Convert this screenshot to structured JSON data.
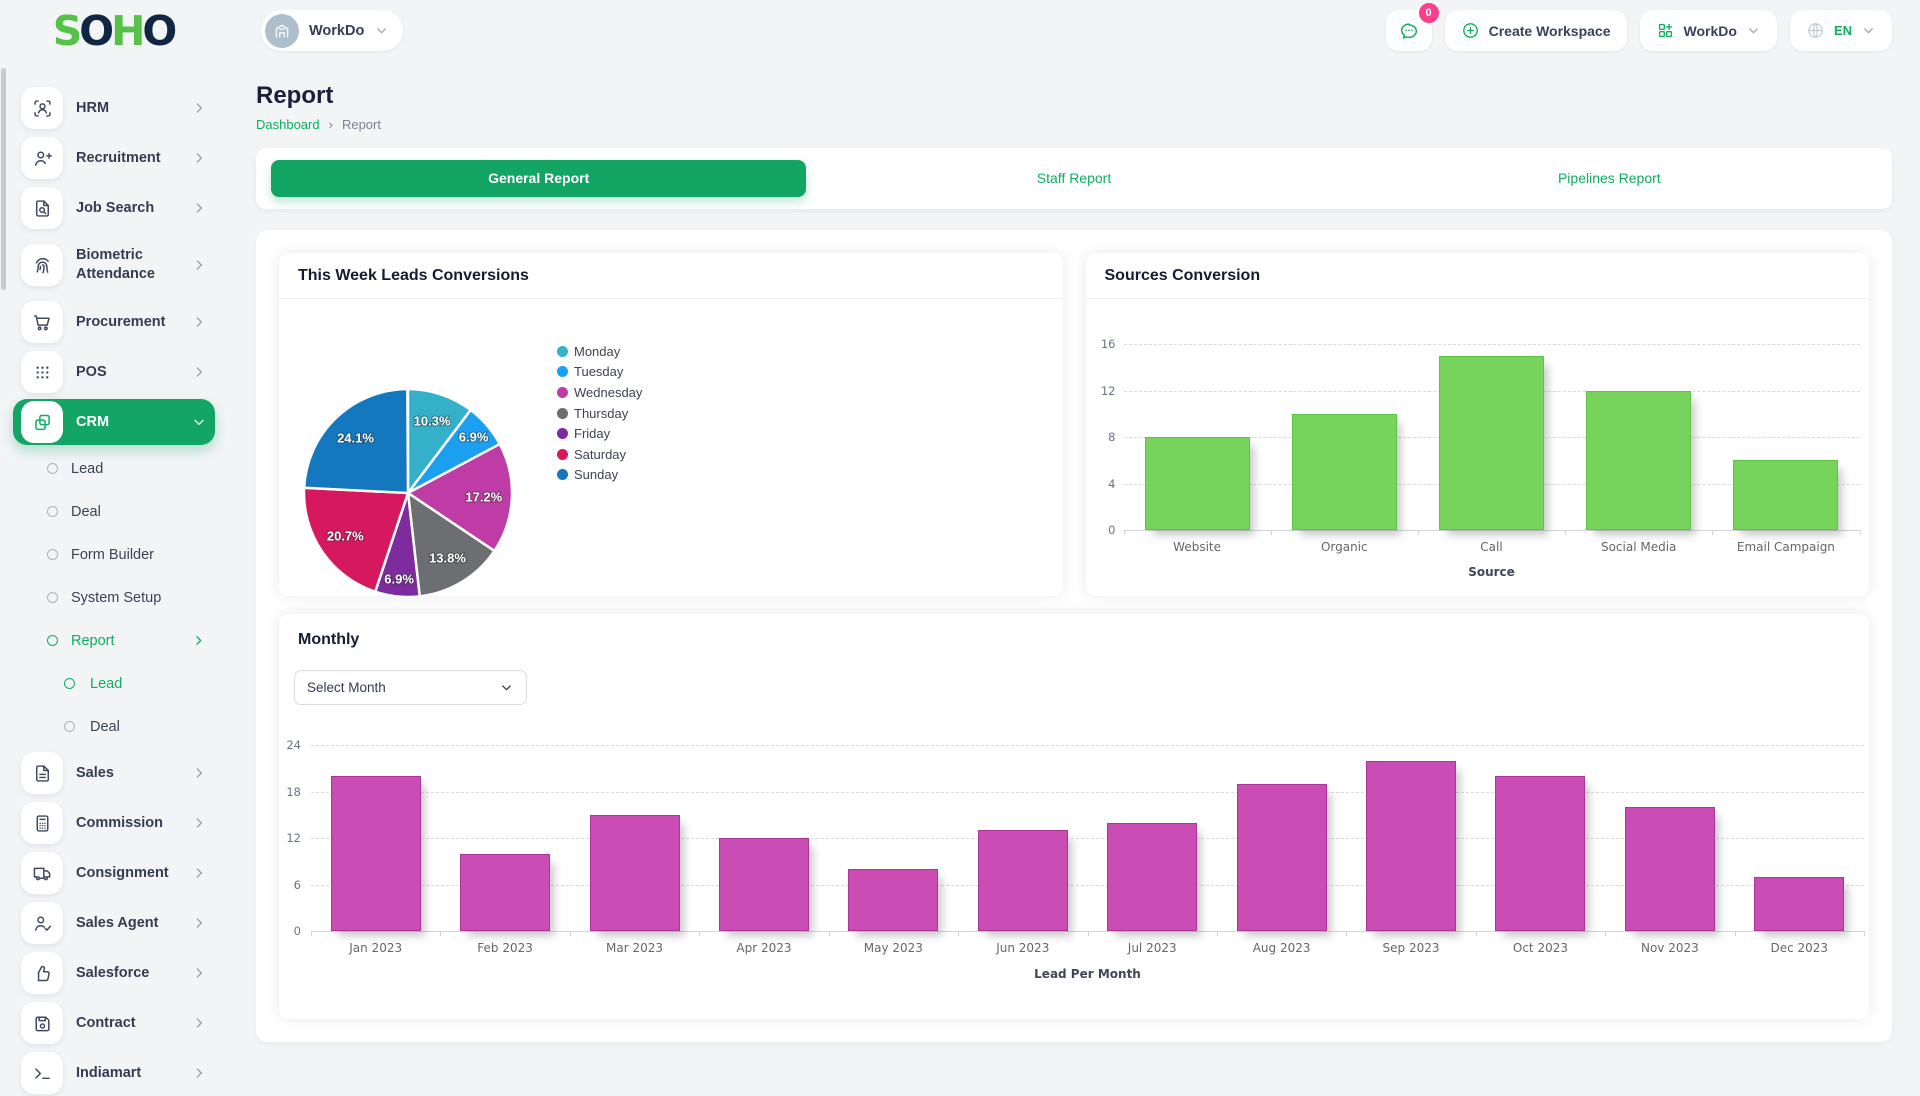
{
  "brand": {
    "logo": [
      {
        "char": "S",
        "color": "#54c247"
      },
      {
        "char": "O",
        "color": "#0f2742"
      },
      {
        "char": "H",
        "color": "#54c247"
      },
      {
        "char": "O",
        "color": "#0f2742"
      }
    ]
  },
  "topbar": {
    "workspace": {
      "label": "WorkDo",
      "icon": "building-icon"
    },
    "chat": {
      "icon": "chat-icon",
      "badge": "0"
    },
    "create_workspace": {
      "label": "Create Workspace",
      "icon": "plus-circle-icon"
    },
    "workspace_switcher": {
      "label": "WorkDo",
      "icon": "grid-plus-icon"
    },
    "language": {
      "label": "EN",
      "icon": "globe-icon"
    }
  },
  "sidebar": {
    "items": [
      {
        "label": "HRM",
        "icon": "hrm-icon",
        "level": 0,
        "chevron": "right"
      },
      {
        "label": "Recruitment",
        "icon": "recruitment-icon",
        "level": 0,
        "chevron": "right"
      },
      {
        "label": "Job Search",
        "icon": "job-search-icon",
        "level": 0,
        "chevron": "right"
      },
      {
        "label": "Biometric Attendance",
        "icon": "biometric-icon",
        "level": 0,
        "chevron": "right",
        "tall": true
      },
      {
        "label": "Procurement",
        "icon": "procurement-icon",
        "level": 0,
        "chevron": "right"
      },
      {
        "label": "POS",
        "icon": "pos-icon",
        "level": 0,
        "chevron": "right"
      },
      {
        "label": "CRM",
        "icon": "crm-icon",
        "level": 0,
        "chevron": "down",
        "active": true
      },
      {
        "label": "Lead",
        "level": 1
      },
      {
        "label": "Deal",
        "level": 1
      },
      {
        "label": "Form Builder",
        "level": 1
      },
      {
        "label": "System Setup",
        "level": 1
      },
      {
        "label": "Report",
        "level": 1,
        "active": true,
        "chevron": "right"
      },
      {
        "label": "Lead",
        "level": 2,
        "active": true
      },
      {
        "label": "Deal",
        "level": 2
      },
      {
        "label": "Sales",
        "icon": "sales-icon",
        "level": 0,
        "chevron": "right"
      },
      {
        "label": "Commission",
        "icon": "commission-icon",
        "level": 0,
        "chevron": "right"
      },
      {
        "label": "Consignment",
        "icon": "consignment-icon",
        "level": 0,
        "chevron": "right"
      },
      {
        "label": "Sales Agent",
        "icon": "sales-agent-icon",
        "level": 0,
        "chevron": "right"
      },
      {
        "label": "Salesforce",
        "icon": "salesforce-icon",
        "level": 0,
        "chevron": "right"
      },
      {
        "label": "Contract",
        "icon": "contract-icon",
        "level": 0,
        "chevron": "right"
      },
      {
        "label": "Indiamart",
        "icon": "indiamart-icon",
        "level": 0,
        "chevron": "right"
      }
    ]
  },
  "page": {
    "title": "Report",
    "breadcrumb": {
      "items": [
        "Dashboard",
        "Report"
      ],
      "separator": "›"
    }
  },
  "tabs": [
    {
      "label": "General Report",
      "active": true
    },
    {
      "label": "Staff Report",
      "active": false
    },
    {
      "label": "Pipelines Report",
      "active": false
    }
  ],
  "cards": {
    "monthly": {
      "select_placeholder": "Select Month"
    }
  },
  "chart_data": [
    {
      "type": "pie",
      "title": "This Week Leads Conversions",
      "labels": [
        "Monday",
        "Tuesday",
        "Wednesday",
        "Thursday",
        "Friday",
        "Saturday",
        "Sunday"
      ],
      "values": [
        10.3,
        6.9,
        17.2,
        13.8,
        6.9,
        20.7,
        24.1
      ],
      "value_labels": [
        "10.3%",
        "6.9%",
        "17.2%",
        "13.8%",
        "6.9%",
        "20.7%",
        "24.1%"
      ],
      "colors": [
        "#35b0ca",
        "#1b9ff0",
        "#bf3ba5",
        "#6d6e71",
        "#7e2ba0",
        "#d6185f",
        "#1478bf"
      ],
      "legend_position": "right",
      "start_angle": "top",
      "direction": "clockwise"
    },
    {
      "type": "bar",
      "title": "Sources Conversion",
      "categories": [
        "Website",
        "Organic",
        "Call",
        "Social Media",
        "Email Campaign"
      ],
      "values": [
        8,
        10,
        15,
        12,
        6
      ],
      "bar_color": "#77d35c",
      "xlabel": "Source",
      "ylim": [
        0,
        16
      ],
      "yticks": [
        0,
        4,
        8,
        12,
        16
      ],
      "grid": "dashed-horizontal"
    },
    {
      "type": "bar",
      "title": "Monthly",
      "categories": [
        "Jan 2023",
        "Feb 2023",
        "Mar 2023",
        "Apr 2023",
        "May 2023",
        "Jun 2023",
        "Jul 2023",
        "Aug 2023",
        "Sep 2023",
        "Oct 2023",
        "Nov 2023",
        "Dec 2023"
      ],
      "values": [
        20,
        10,
        15,
        12,
        8,
        13,
        14,
        19,
        22,
        20,
        16,
        7
      ],
      "bar_color": "#c94db4",
      "xlabel": "Lead Per Month",
      "ylim": [
        0,
        24
      ],
      "yticks": [
        0,
        6,
        12,
        18,
        24
      ],
      "grid": "dashed-horizontal"
    }
  ],
  "colors": {
    "accent_green": "#0caf60",
    "active_fill": "#12a565",
    "badge_pink": "#fb3e8d",
    "sources_bar": "#77d35c",
    "monthly_bar": "#c94db4",
    "page_bg": "#f2f4f6"
  }
}
